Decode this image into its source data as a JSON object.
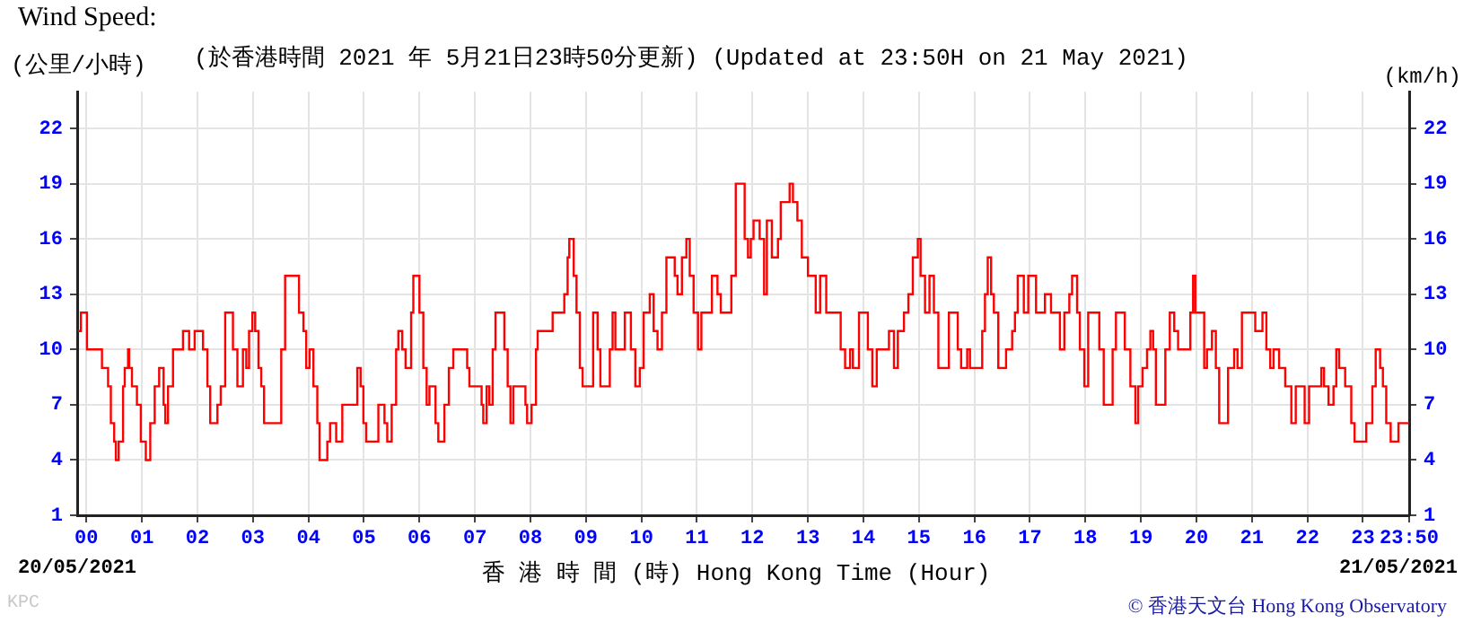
{
  "chart_data": {
    "type": "step",
    "title": "Wind Speed:",
    "subtitle": "(於香港時間 2021 年 5月21日23時50分更新) (Updated at 23:50H on 21 May 2021)",
    "ylabel": "(公里/小時)",
    "y2label": "(km/h)",
    "xlabel": "香 港 時 間 (時) Hong Kong Time (Hour)",
    "annotations": [
      "20/05/2021",
      "21/05/2021",
      "KPC",
      "© 香港天文台 Hong Kong Observatory"
    ],
    "x": [
      -0.15,
      -0.1,
      0.01,
      0.23,
      0.28,
      0.39,
      0.44,
      0.5,
      0.53,
      0.58,
      0.66,
      0.69,
      0.75,
      0.77,
      0.82,
      0.91,
      0.98,
      1.07,
      1.15,
      1.23,
      1.31,
      1.39,
      1.42,
      1.47,
      1.56,
      1.74,
      1.85,
      1.95,
      2.1,
      2.18,
      2.23,
      2.36,
      2.42,
      2.5,
      2.64,
      2.72,
      2.82,
      2.88,
      2.93,
      2.99,
      3.04,
      3.1,
      3.15,
      3.2,
      3.51,
      3.58,
      3.83,
      3.91,
      3.96,
      4.02,
      4.09,
      4.16,
      4.2,
      4.34,
      4.39,
      4.5,
      4.61,
      4.88,
      4.94,
      4.99,
      5.04,
      5.26,
      5.37,
      5.42,
      5.5,
      5.58,
      5.62,
      5.69,
      5.75,
      5.85,
      5.89,
      6.0,
      6.07,
      6.13,
      6.18,
      6.29,
      6.34,
      6.45,
      6.53,
      6.61,
      6.86,
      6.9,
      7.12,
      7.15,
      7.21,
      7.26,
      7.32,
      7.37,
      7.53,
      7.59,
      7.64,
      7.69,
      7.91,
      7.94,
      8.02,
      8.1,
      8.13,
      8.4,
      8.61,
      8.67,
      8.7,
      8.78,
      8.83,
      8.89,
      8.94,
      9.13,
      9.21,
      9.26,
      9.43,
      9.48,
      9.53,
      9.7,
      9.81,
      9.89,
      9.97,
      10.04,
      10.15,
      10.22,
      10.29,
      10.37,
      10.45,
      10.6,
      10.65,
      10.73,
      10.81,
      10.87,
      10.94,
      11.02,
      11.08,
      11.27,
      11.37,
      11.43,
      11.62,
      11.7,
      11.86,
      11.92,
      11.97,
      12.02,
      12.13,
      12.21,
      12.26,
      12.35,
      12.46,
      12.51,
      12.67,
      12.73,
      12.81,
      12.89,
      13.0,
      13.14,
      13.22,
      13.33,
      13.59,
      13.67,
      13.76,
      13.81,
      13.92,
      14.08,
      14.16,
      14.24,
      14.46,
      14.55,
      14.62,
      14.73,
      14.81,
      14.89,
      14.98,
      15.03,
      15.11,
      15.19,
      15.27,
      15.35,
      15.54,
      15.7,
      15.76,
      15.87,
      15.92,
      16.14,
      16.19,
      16.24,
      16.3,
      16.35,
      16.43,
      16.57,
      16.68,
      16.73,
      16.78,
      16.89,
      16.97,
      17.11,
      17.27,
      17.38,
      17.54,
      17.62,
      17.71,
      17.76,
      17.85,
      17.9,
      17.98,
      18.05,
      18.25,
      18.33,
      18.49,
      18.55,
      18.71,
      18.81,
      18.9,
      18.95,
      19.03,
      19.11,
      19.17,
      19.22,
      19.27,
      19.44,
      19.52,
      19.6,
      19.67,
      19.89,
      19.94,
      19.98,
      20.14,
      20.19,
      20.28,
      20.35,
      20.41,
      20.57,
      20.68,
      20.74,
      20.82,
      21.06,
      21.19,
      21.26,
      21.33,
      21.39,
      21.49,
      21.6,
      21.71,
      21.79,
      21.95,
      22.03,
      22.25,
      22.3,
      22.38,
      22.47,
      22.52,
      22.57,
      22.68,
      22.79,
      22.85,
      23.06,
      23.17,
      23.23,
      23.31,
      23.36,
      23.42,
      23.5,
      23.64,
      23.83
    ],
    "series": [
      {
        "color": "#ff0000",
        "values": [
          11,
          12,
          10,
          10,
          9,
          8,
          6,
          5,
          4,
          5,
          8,
          9,
          10,
          9,
          8,
          7,
          5,
          4,
          6,
          8,
          9,
          7,
          6,
          8,
          10,
          11,
          10,
          11,
          10,
          8,
          6,
          7,
          8,
          12,
          10,
          8,
          10,
          9,
          11,
          12,
          11,
          9,
          8,
          6,
          10,
          14,
          12,
          11,
          9,
          10,
          8,
          6,
          4,
          5,
          6,
          5,
          7,
          9,
          8,
          6,
          5,
          7,
          6,
          5,
          7,
          10,
          11,
          10,
          9,
          12,
          14,
          12,
          9,
          7,
          8,
          6,
          5,
          7,
          9,
          10,
          9,
          8,
          7,
          6,
          8,
          7,
          10,
          12,
          10,
          8,
          6,
          8,
          7,
          6,
          7,
          10,
          11,
          12,
          13,
          15,
          16,
          14,
          12,
          9,
          8,
          12,
          10,
          8,
          10,
          12,
          10,
          12,
          10,
          8,
          9,
          12,
          13,
          11,
          10,
          12,
          15,
          14,
          13,
          15,
          16,
          14,
          12,
          10,
          12,
          14,
          13,
          12,
          14,
          19,
          16,
          15,
          16,
          17,
          16,
          13,
          17,
          15,
          16,
          18,
          19,
          18,
          17,
          15,
          14,
          12,
          14,
          12,
          10,
          9,
          10,
          9,
          12,
          10,
          8,
          10,
          11,
          9,
          11,
          12,
          13,
          15,
          16,
          14,
          12,
          14,
          12,
          9,
          12,
          10,
          9,
          10,
          9,
          11,
          13,
          15,
          13,
          12,
          9,
          10,
          11,
          12,
          14,
          12,
          14,
          12,
          13,
          12,
          10,
          12,
          13,
          14,
          12,
          10,
          8,
          12,
          10,
          7,
          10,
          12,
          10,
          8,
          6,
          8,
          9,
          10,
          11,
          10,
          7,
          10,
          12,
          11,
          10,
          12,
          14,
          12,
          9,
          10,
          11,
          9,
          6,
          9,
          10,
          9,
          12,
          11,
          12,
          10,
          9,
          10,
          9,
          8,
          6,
          8,
          6,
          8,
          9,
          8,
          7,
          8,
          10,
          9,
          8,
          6,
          5,
          6,
          8,
          10,
          9,
          8,
          6,
          5,
          6,
          6
        ]
      }
    ],
    "xlim": [
      -0.1667,
      23.8333
    ],
    "xticks": [
      {
        "value": 0,
        "label": "00"
      },
      {
        "value": 1,
        "label": "01"
      },
      {
        "value": 2,
        "label": "02"
      },
      {
        "value": 3,
        "label": "03"
      },
      {
        "value": 4,
        "label": "04"
      },
      {
        "value": 5,
        "label": "05"
      },
      {
        "value": 6,
        "label": "06"
      },
      {
        "value": 7,
        "label": "07"
      },
      {
        "value": 8,
        "label": "08"
      },
      {
        "value": 9,
        "label": "09"
      },
      {
        "value": 10,
        "label": "10"
      },
      {
        "value": 11,
        "label": "11"
      },
      {
        "value": 12,
        "label": "12"
      },
      {
        "value": 13,
        "label": "13"
      },
      {
        "value": 14,
        "label": "14"
      },
      {
        "value": 15,
        "label": "15"
      },
      {
        "value": 16,
        "label": "16"
      },
      {
        "value": 17,
        "label": "17"
      },
      {
        "value": 18,
        "label": "18"
      },
      {
        "value": 19,
        "label": "19"
      },
      {
        "value": 20,
        "label": "20"
      },
      {
        "value": 21,
        "label": "21"
      },
      {
        "value": 22,
        "label": "22"
      },
      {
        "value": 23,
        "label": "23"
      },
      {
        "value": 23.8333,
        "label": "23:50"
      }
    ],
    "ylim": [
      1,
      24
    ],
    "yticks": [
      1,
      4,
      7,
      10,
      13,
      16,
      19,
      22
    ],
    "y2lim": [
      1,
      24
    ],
    "y2ticks": [
      1,
      4,
      7,
      10,
      13,
      16,
      19,
      22
    ],
    "grid": true
  }
}
